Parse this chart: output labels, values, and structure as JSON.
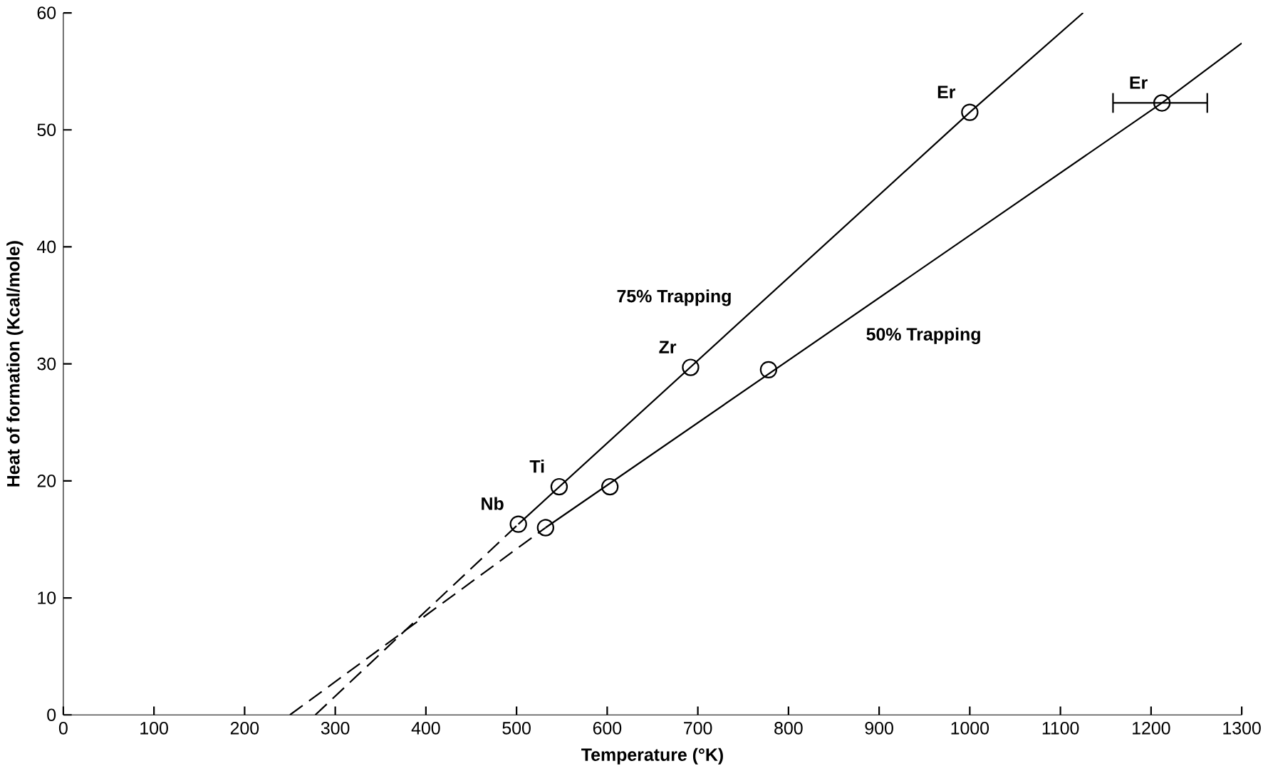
{
  "chart_data": {
    "type": "scatter",
    "xlabel": "Temperature (°K)",
    "ylabel": "Heat of formation (Kcal/mole)",
    "xlim": [
      0,
      1300
    ],
    "ylim": [
      0,
      60
    ],
    "xticks": [
      0,
      100,
      200,
      300,
      400,
      500,
      600,
      700,
      800,
      900,
      1000,
      1100,
      1200,
      1300
    ],
    "yticks": [
      0,
      10,
      20,
      30,
      40,
      50,
      60
    ],
    "grid": false,
    "marker": "circle",
    "series": [
      {
        "color": "#000000",
        "x": [
          502,
          547,
          692,
          1000
        ],
        "values": [
          16.3,
          19.5,
          29.7,
          51.5
        ]
      },
      {
        "color": "#000000",
        "x": [
          532,
          603,
          778,
          1212
        ],
        "values": [
          16.0,
          19.5,
          29.5,
          52.3
        ],
        "xerrors": [
          null,
          null,
          null,
          [
            1158,
            1262
          ]
        ]
      },
      {
        "type": "line",
        "name": "75% Trapping",
        "color": "#000000",
        "line_style": "solid",
        "marker": "none",
        "x": [
          502,
          1000,
          1125
        ],
        "values": [
          16.3,
          51.5,
          60
        ]
      },
      {
        "type": "line",
        "name": "50% Trapping",
        "color": "#000000",
        "line_style": "solid",
        "marker": "none",
        "x": [
          532,
          1212,
          1300
        ],
        "values": [
          16.0,
          52.3,
          57.4
        ]
      },
      {
        "type": "line",
        "color": "#000000",
        "line_style": "dashed",
        "marker": "none",
        "x": [
          278,
          502
        ],
        "values": [
          0,
          16.3
        ]
      },
      {
        "type": "line",
        "color": "#000000",
        "line_style": "dashed",
        "marker": "none",
        "x": [
          250,
          532
        ],
        "values": [
          0,
          16.0
        ]
      }
    ],
    "annotations": [
      {
        "text": "Nb",
        "x": 502,
        "y": 16.3
      },
      {
        "text": "Ti",
        "x": 547,
        "y": 19.5
      },
      {
        "text": "Zr",
        "x": 692,
        "y": 29.7
      },
      {
        "text": "Er",
        "x": 1000,
        "y": 51.5
      },
      {
        "text": "Er",
        "x": 1212,
        "y": 52.3
      }
    ]
  }
}
